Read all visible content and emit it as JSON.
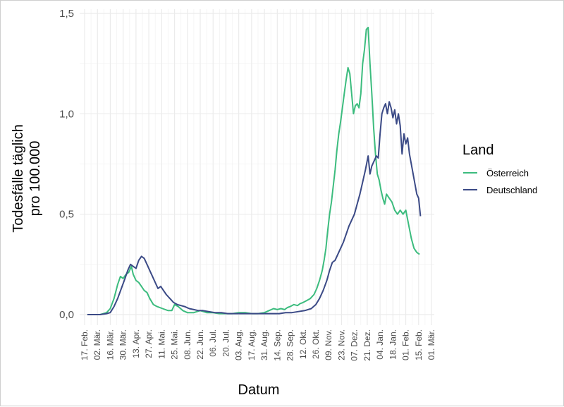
{
  "chart_data": {
    "type": "line",
    "xlabel": "Datum",
    "ylabel_lines": [
      "Todesfälle täglich",
      "pro 100.000"
    ],
    "ylim": [
      0,
      1.5
    ],
    "yticks": [
      0,
      0.5,
      1.0,
      1.5
    ],
    "ytick_labels": [
      "0,0",
      "0,5",
      "1,0",
      "1,5"
    ],
    "xlim": [
      "2020-02-10",
      "2021-03-04"
    ],
    "xticks": [
      "2020-02-17",
      "2020-03-02",
      "2020-03-16",
      "2020-03-30",
      "2020-04-13",
      "2020-04-27",
      "2020-05-11",
      "2020-05-25",
      "2020-06-08",
      "2020-06-22",
      "2020-07-06",
      "2020-07-20",
      "2020-08-03",
      "2020-08-17",
      "2020-08-31",
      "2020-09-14",
      "2020-09-28",
      "2020-10-12",
      "2020-10-26",
      "2020-11-09",
      "2020-11-23",
      "2020-12-07",
      "2020-12-21",
      "2021-01-04",
      "2021-01-18",
      "2021-02-01",
      "2021-02-15",
      "2021-03-01"
    ],
    "xtick_labels": [
      "17. Feb.",
      "02. Mär.",
      "16. Mär.",
      "30. Mär.",
      "13. Apr.",
      "27. Apr.",
      "11. Mai.",
      "25. Mai.",
      "08. Jun.",
      "22. Jun.",
      "06. Jul.",
      "20. Jul.",
      "03. Aug.",
      "17. Aug.",
      "31. Aug.",
      "14. Sep.",
      "28. Sep.",
      "12. Okt.",
      "26. Okt.",
      "09. Nov.",
      "23. Nov.",
      "07. Dez.",
      "21. Dez.",
      "04. Jan.",
      "18. Jan.",
      "01. Feb.",
      "15. Feb.",
      "01. Mär."
    ],
    "grid": true,
    "legend": {
      "title": "Land",
      "position": "right"
    },
    "series": [
      {
        "name": "Österreich",
        "color": "#3cbc7e",
        "points": [
          [
            "2020-02-20",
            0
          ],
          [
            "2020-03-05",
            0
          ],
          [
            "2020-03-12",
            0.01
          ],
          [
            "2020-03-16",
            0.03
          ],
          [
            "2020-03-20",
            0.08
          ],
          [
            "2020-03-24",
            0.15
          ],
          [
            "2020-03-27",
            0.19
          ],
          [
            "2020-03-30",
            0.18
          ],
          [
            "2020-04-02",
            0.2
          ],
          [
            "2020-04-05",
            0.21
          ],
          [
            "2020-04-08",
            0.24
          ],
          [
            "2020-04-10",
            0.2
          ],
          [
            "2020-04-13",
            0.17
          ],
          [
            "2020-04-16",
            0.16
          ],
          [
            "2020-04-19",
            0.14
          ],
          [
            "2020-04-22",
            0.12
          ],
          [
            "2020-04-25",
            0.11
          ],
          [
            "2020-04-28",
            0.08
          ],
          [
            "2020-05-02",
            0.05
          ],
          [
            "2020-05-06",
            0.04
          ],
          [
            "2020-05-12",
            0.03
          ],
          [
            "2020-05-18",
            0.02
          ],
          [
            "2020-05-22",
            0.02
          ],
          [
            "2020-05-25",
            0.05
          ],
          [
            "2020-05-29",
            0.04
          ],
          [
            "2020-06-03",
            0.02
          ],
          [
            "2020-06-08",
            0.01
          ],
          [
            "2020-06-15",
            0.01
          ],
          [
            "2020-06-22",
            0.02
          ],
          [
            "2020-06-29",
            0.01
          ],
          [
            "2020-07-06",
            0.01
          ],
          [
            "2020-07-13",
            0.005
          ],
          [
            "2020-07-20",
            0.005
          ],
          [
            "2020-07-27",
            0.005
          ],
          [
            "2020-08-03",
            0.01
          ],
          [
            "2020-08-10",
            0.01
          ],
          [
            "2020-08-17",
            0.005
          ],
          [
            "2020-08-24",
            0.005
          ],
          [
            "2020-08-31",
            0.01
          ],
          [
            "2020-09-05",
            0.02
          ],
          [
            "2020-09-10",
            0.03
          ],
          [
            "2020-09-14",
            0.025
          ],
          [
            "2020-09-18",
            0.03
          ],
          [
            "2020-09-22",
            0.025
          ],
          [
            "2020-09-25",
            0.035
          ],
          [
            "2020-09-28",
            0.04
          ],
          [
            "2020-10-02",
            0.05
          ],
          [
            "2020-10-06",
            0.045
          ],
          [
            "2020-10-09",
            0.055
          ],
          [
            "2020-10-12",
            0.06
          ],
          [
            "2020-10-16",
            0.07
          ],
          [
            "2020-10-20",
            0.08
          ],
          [
            "2020-10-24",
            0.1
          ],
          [
            "2020-10-27",
            0.13
          ],
          [
            "2020-10-30",
            0.17
          ],
          [
            "2020-11-02",
            0.22
          ],
          [
            "2020-11-04",
            0.27
          ],
          [
            "2020-11-06",
            0.33
          ],
          [
            "2020-11-08",
            0.42
          ],
          [
            "2020-11-10",
            0.5
          ],
          [
            "2020-11-12",
            0.56
          ],
          [
            "2020-11-14",
            0.64
          ],
          [
            "2020-11-16",
            0.72
          ],
          [
            "2020-11-18",
            0.82
          ],
          [
            "2020-11-20",
            0.9
          ],
          [
            "2020-11-22",
            0.96
          ],
          [
            "2020-11-24",
            1.03
          ],
          [
            "2020-11-26",
            1.1
          ],
          [
            "2020-11-28",
            1.17
          ],
          [
            "2020-11-30",
            1.23
          ],
          [
            "2020-12-02",
            1.2
          ],
          [
            "2020-12-04",
            1.1
          ],
          [
            "2020-12-06",
            1.0
          ],
          [
            "2020-12-08",
            1.04
          ],
          [
            "2020-12-10",
            1.05
          ],
          [
            "2020-12-12",
            1.03
          ],
          [
            "2020-12-14",
            1.1
          ],
          [
            "2020-12-16",
            1.25
          ],
          [
            "2020-12-18",
            1.32
          ],
          [
            "2020-12-20",
            1.42
          ],
          [
            "2020-12-22",
            1.43
          ],
          [
            "2020-12-24",
            1.25
          ],
          [
            "2020-12-26",
            1.1
          ],
          [
            "2020-12-28",
            0.93
          ],
          [
            "2020-12-30",
            0.8
          ],
          [
            "2021-01-01",
            0.7
          ],
          [
            "2021-01-03",
            0.67
          ],
          [
            "2021-01-05",
            0.62
          ],
          [
            "2021-01-07",
            0.58
          ],
          [
            "2021-01-09",
            0.55
          ],
          [
            "2021-01-11",
            0.6
          ],
          [
            "2021-01-14",
            0.58
          ],
          [
            "2021-01-17",
            0.56
          ],
          [
            "2021-01-20",
            0.52
          ],
          [
            "2021-01-23",
            0.5
          ],
          [
            "2021-01-26",
            0.52
          ],
          [
            "2021-01-29",
            0.5
          ],
          [
            "2021-02-01",
            0.52
          ],
          [
            "2021-02-04",
            0.45
          ],
          [
            "2021-02-07",
            0.38
          ],
          [
            "2021-02-10",
            0.33
          ],
          [
            "2021-02-13",
            0.31
          ],
          [
            "2021-02-16",
            0.3
          ]
        ]
      },
      {
        "name": "Deutschland",
        "color": "#3b4a86",
        "points": [
          [
            "2020-02-20",
            0
          ],
          [
            "2020-03-05",
            0
          ],
          [
            "2020-03-12",
            0.005
          ],
          [
            "2020-03-16",
            0.01
          ],
          [
            "2020-03-20",
            0.04
          ],
          [
            "2020-03-24",
            0.08
          ],
          [
            "2020-03-28",
            0.13
          ],
          [
            "2020-04-01",
            0.18
          ],
          [
            "2020-04-04",
            0.22
          ],
          [
            "2020-04-07",
            0.25
          ],
          [
            "2020-04-10",
            0.24
          ],
          [
            "2020-04-13",
            0.23
          ],
          [
            "2020-04-16",
            0.27
          ],
          [
            "2020-04-19",
            0.29
          ],
          [
            "2020-04-22",
            0.28
          ],
          [
            "2020-04-25",
            0.25
          ],
          [
            "2020-04-28",
            0.22
          ],
          [
            "2020-05-01",
            0.19
          ],
          [
            "2020-05-04",
            0.16
          ],
          [
            "2020-05-07",
            0.13
          ],
          [
            "2020-05-10",
            0.14
          ],
          [
            "2020-05-13",
            0.12
          ],
          [
            "2020-05-16",
            0.1
          ],
          [
            "2020-05-20",
            0.08
          ],
          [
            "2020-05-24",
            0.06
          ],
          [
            "2020-05-28",
            0.05
          ],
          [
            "2020-06-01",
            0.045
          ],
          [
            "2020-06-05",
            0.04
          ],
          [
            "2020-06-10",
            0.03
          ],
          [
            "2020-06-15",
            0.025
          ],
          [
            "2020-06-20",
            0.02
          ],
          [
            "2020-06-25",
            0.02
          ],
          [
            "2020-07-01",
            0.015
          ],
          [
            "2020-07-08",
            0.01
          ],
          [
            "2020-07-15",
            0.01
          ],
          [
            "2020-07-22",
            0.005
          ],
          [
            "2020-07-29",
            0.005
          ],
          [
            "2020-08-05",
            0.005
          ],
          [
            "2020-08-12",
            0.005
          ],
          [
            "2020-08-19",
            0.005
          ],
          [
            "2020-08-26",
            0.005
          ],
          [
            "2020-09-02",
            0.005
          ],
          [
            "2020-09-09",
            0.005
          ],
          [
            "2020-09-16",
            0.005
          ],
          [
            "2020-09-23",
            0.01
          ],
          [
            "2020-09-30",
            0.01
          ],
          [
            "2020-10-07",
            0.015
          ],
          [
            "2020-10-14",
            0.02
          ],
          [
            "2020-10-21",
            0.03
          ],
          [
            "2020-10-26",
            0.05
          ],
          [
            "2020-10-30",
            0.08
          ],
          [
            "2020-11-03",
            0.12
          ],
          [
            "2020-11-07",
            0.17
          ],
          [
            "2020-11-10",
            0.22
          ],
          [
            "2020-11-13",
            0.26
          ],
          [
            "2020-11-16",
            0.27
          ],
          [
            "2020-11-19",
            0.3
          ],
          [
            "2020-11-22",
            0.33
          ],
          [
            "2020-11-25",
            0.36
          ],
          [
            "2020-11-28",
            0.4
          ],
          [
            "2020-12-01",
            0.44
          ],
          [
            "2020-12-04",
            0.47
          ],
          [
            "2020-12-07",
            0.5
          ],
          [
            "2020-12-10",
            0.55
          ],
          [
            "2020-12-13",
            0.6
          ],
          [
            "2020-12-16",
            0.66
          ],
          [
            "2020-12-19",
            0.72
          ],
          [
            "2020-12-22",
            0.79
          ],
          [
            "2020-12-24",
            0.7
          ],
          [
            "2020-12-26",
            0.74
          ],
          [
            "2020-12-28",
            0.76
          ],
          [
            "2020-12-31",
            0.79
          ],
          [
            "2021-01-02",
            0.78
          ],
          [
            "2021-01-04",
            0.9
          ],
          [
            "2021-01-06",
            1.0
          ],
          [
            "2021-01-08",
            1.03
          ],
          [
            "2021-01-10",
            1.05
          ],
          [
            "2021-01-12",
            1.0
          ],
          [
            "2021-01-14",
            1.06
          ],
          [
            "2021-01-16",
            1.03
          ],
          [
            "2021-01-18",
            0.98
          ],
          [
            "2021-01-20",
            1.02
          ],
          [
            "2021-01-22",
            0.95
          ],
          [
            "2021-01-24",
            1.0
          ],
          [
            "2021-01-26",
            0.94
          ],
          [
            "2021-01-28",
            0.8
          ],
          [
            "2021-01-30",
            0.9
          ],
          [
            "2021-02-01",
            0.85
          ],
          [
            "2021-02-03",
            0.88
          ],
          [
            "2021-02-05",
            0.8
          ],
          [
            "2021-02-07",
            0.75
          ],
          [
            "2021-02-09",
            0.7
          ],
          [
            "2021-02-11",
            0.65
          ],
          [
            "2021-02-13",
            0.6
          ],
          [
            "2021-02-15",
            0.58
          ],
          [
            "2021-02-17",
            0.49
          ]
        ]
      }
    ]
  }
}
